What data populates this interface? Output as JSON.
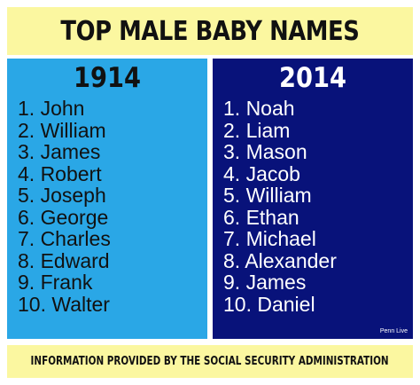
{
  "title": "TOP MALE BABY NAMES",
  "columns": [
    {
      "year": "1914",
      "names": [
        "1. John",
        "2. William",
        "3. James",
        "4. Robert",
        "5. Joseph",
        "6. George",
        "7. Charles",
        "8. Edward",
        "9. Frank",
        "10. Walter"
      ]
    },
    {
      "year": "2014",
      "names": [
        "1. Noah",
        "2. Liam",
        "3. Mason",
        "4. Jacob",
        "5. William",
        "6. Ethan",
        "7. Michael",
        "8. Alexander",
        "9. James",
        "10. Daniel"
      ]
    }
  ],
  "credit": "Penn Live",
  "footer": "INFORMATION PROVIDED BY THE SOCIAL SECURITY ADMINISTRATION",
  "colors": {
    "banner_background": "#fbf7a0",
    "left_panel": "#2aa7e6",
    "right_panel": "#08127a"
  }
}
